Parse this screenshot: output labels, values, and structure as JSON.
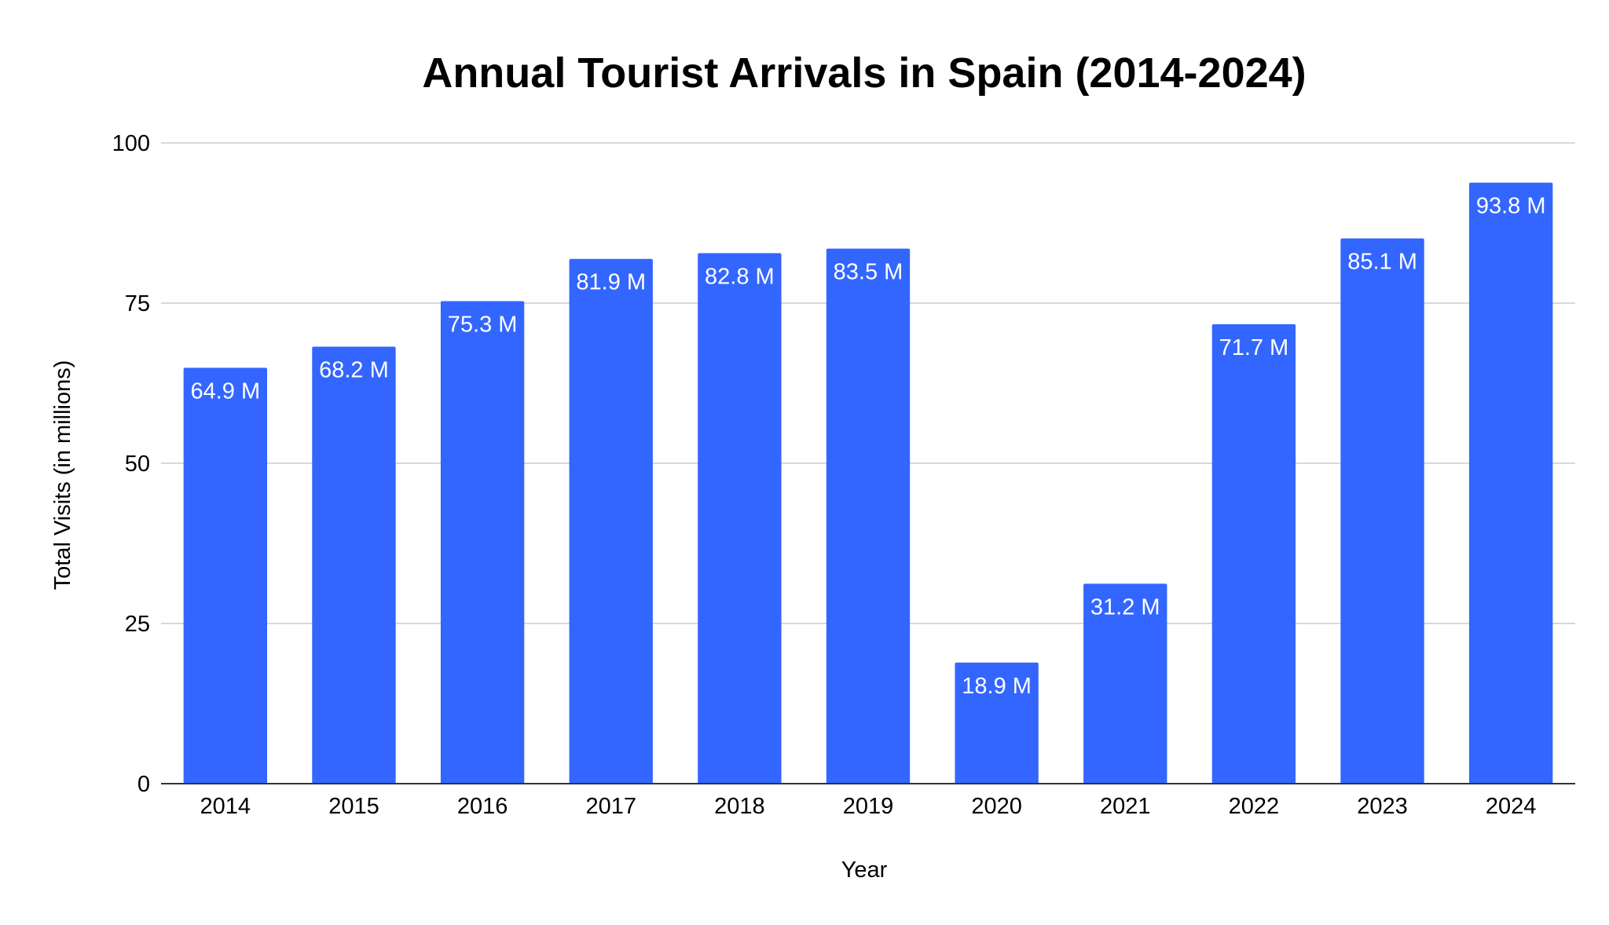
{
  "chart_data": {
    "type": "bar",
    "title": "Annual Tourist Arrivals in Spain (2014-2024)",
    "xlabel": "Year",
    "ylabel": "Total Visits (in millions)",
    "ylim": [
      0,
      100
    ],
    "yticks": [
      "0",
      "25",
      "50",
      "75",
      "100"
    ],
    "ytick_values": [
      0,
      25,
      50,
      75,
      100
    ],
    "grid": true,
    "legend": "none",
    "categories": [
      "2014",
      "2015",
      "2016",
      "2017",
      "2018",
      "2019",
      "2020",
      "2021",
      "2022",
      "2023",
      "2024"
    ],
    "series": [
      {
        "values": [
          64.9,
          68.2,
          75.3,
          81.9,
          82.8,
          83.5,
          18.9,
          31.2,
          71.7,
          85.1,
          93.8
        ],
        "data_labels": [
          "64.9 M",
          "68.2 M",
          "75.3 M",
          "81.9 M",
          "82.8 M",
          "83.5 M",
          "18.9 M",
          "31.2 M",
          "71.7 M",
          "85.1 M",
          "93.8 M"
        ],
        "color": "#3366ff"
      }
    ]
  }
}
